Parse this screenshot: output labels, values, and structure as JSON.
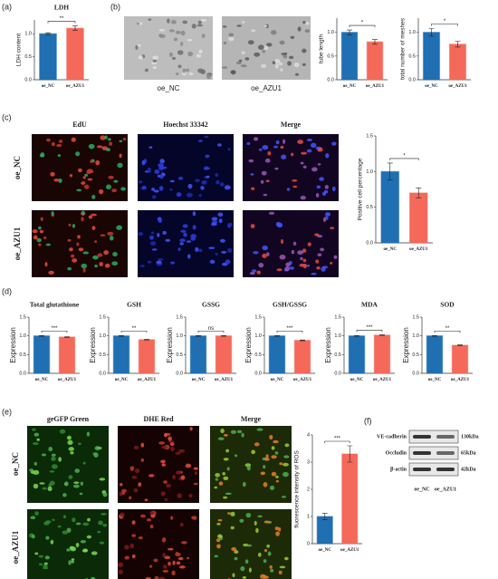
{
  "panels": [
    "(a)",
    "(b)",
    "(c)",
    "(d)",
    "(e)",
    "(f)"
  ],
  "chart_data": [
    {
      "type": "bar",
      "title": "LDH",
      "ylabel": "LDH content",
      "categories": [
        "oe_NC",
        "oe_AZU1"
      ],
      "values": [
        1.0,
        1.12
      ],
      "errors": [
        0.02,
        0.05
      ],
      "colors": [
        "#1f6fb2",
        "#f4695a"
      ],
      "ylim": [
        0,
        1.3
      ],
      "yticks": [
        {
          "value": 0,
          "label": "0.0"
        },
        {
          "value": 0.5,
          "label": "0.5"
        },
        {
          "value": 1,
          "label": "1.0"
        }
      ],
      "significance": "**"
    },
    {
      "type": "bar",
      "ylabel": "tube length",
      "categories": [
        "oe_NC",
        "oe_AZU1"
      ],
      "values": [
        1.0,
        0.8
      ],
      "errors": [
        0.05,
        0.05
      ],
      "colors": [
        "#1f6fb2",
        "#f4695a"
      ],
      "ylim": [
        0,
        1.3
      ],
      "yticks": [
        {
          "value": 0,
          "label": "0.0"
        },
        {
          "value": 0.5,
          "label": "0.5"
        },
        {
          "value": 1,
          "label": "1.0"
        }
      ],
      "significance": "*"
    },
    {
      "type": "bar",
      "ylabel": "total number of meshes",
      "categories": [
        "oe_NC",
        "oe_AZU1"
      ],
      "values": [
        1.0,
        0.75
      ],
      "errors": [
        0.08,
        0.06
      ],
      "colors": [
        "#1f6fb2",
        "#f4695a"
      ],
      "ylim": [
        0,
        1.3
      ],
      "yticks": [
        {
          "value": 0,
          "label": "0.0"
        },
        {
          "value": 0.5,
          "label": "0.5"
        },
        {
          "value": 1,
          "label": "1.0"
        }
      ],
      "significance": "*"
    },
    {
      "type": "bar",
      "ylabel": "Positive cell percentage",
      "categories": [
        "oe_NC",
        "oe_AZU1"
      ],
      "values": [
        1.0,
        0.7
      ],
      "errors": [
        0.12,
        0.07
      ],
      "colors": [
        "#1f6fb2",
        "#f4695a"
      ],
      "ylim": [
        0,
        1.5
      ],
      "yticks": [
        {
          "value": 0,
          "label": "0.0"
        },
        {
          "value": 0.5,
          "label": "0.5"
        },
        {
          "value": 1,
          "label": "1.0"
        },
        {
          "value": 1.5,
          "label": "1.5"
        }
      ],
      "significance": "*"
    },
    {
      "type": "bar",
      "title": "Total glutathione",
      "ylabel": "Expression",
      "categories": [
        "oe_NC",
        "oe_AZU1"
      ],
      "values": [
        1.0,
        0.97
      ],
      "errors": [
        0.01,
        0.01
      ],
      "colors": [
        "#1f6fb2",
        "#f4695a"
      ],
      "ylim": [
        0,
        1.5
      ],
      "yticks": [
        {
          "value": 0,
          "label": "0.0"
        },
        {
          "value": 0.5,
          "label": "0.5"
        },
        {
          "value": 1,
          "label": "1.0"
        },
        {
          "value": 1.5,
          "label": "1.5"
        }
      ],
      "significance": "***"
    },
    {
      "type": "bar",
      "title": "GSH",
      "ylabel": "Expression",
      "categories": [
        "oe_NC",
        "oe_AZU1"
      ],
      "values": [
        1.0,
        0.9
      ],
      "errors": [
        0.01,
        0.01
      ],
      "colors": [
        "#1f6fb2",
        "#f4695a"
      ],
      "ylim": [
        0,
        1.5
      ],
      "yticks": [
        {
          "value": 0,
          "label": "0.0"
        },
        {
          "value": 0.5,
          "label": "0.5"
        },
        {
          "value": 1,
          "label": "1.0"
        },
        {
          "value": 1.5,
          "label": "1.5"
        }
      ],
      "significance": "**"
    },
    {
      "type": "bar",
      "title": "GSSG",
      "ylabel": "Expression",
      "categories": [
        "oe_NC",
        "oe_AZU1"
      ],
      "values": [
        1.0,
        1.0
      ],
      "errors": [
        0.01,
        0.01
      ],
      "colors": [
        "#1f6fb2",
        "#f4695a"
      ],
      "ylim": [
        0,
        1.5
      ],
      "yticks": [
        {
          "value": 0,
          "label": "0.0"
        },
        {
          "value": 0.5,
          "label": "0.5"
        },
        {
          "value": 1,
          "label": "1.0"
        },
        {
          "value": 1.5,
          "label": "1.5"
        }
      ],
      "significance": "ns"
    },
    {
      "type": "bar",
      "title": "GSH/GSSG",
      "ylabel": "Expression",
      "categories": [
        "oe_NC",
        "oe_AZU1"
      ],
      "values": [
        1.0,
        0.88
      ],
      "errors": [
        0.01,
        0.01
      ],
      "colors": [
        "#1f6fb2",
        "#f4695a"
      ],
      "ylim": [
        0,
        1.5
      ],
      "yticks": [
        {
          "value": 0,
          "label": "0.0"
        },
        {
          "value": 0.5,
          "label": "0.5"
        },
        {
          "value": 1,
          "label": "1.0"
        },
        {
          "value": 1.5,
          "label": "1.5"
        }
      ],
      "significance": "***"
    },
    {
      "type": "bar",
      "title": "MDA",
      "ylabel": "Expression",
      "categories": [
        "oe_NC",
        "oe_AZU1"
      ],
      "values": [
        1.0,
        1.02
      ],
      "errors": [
        0.01,
        0.01
      ],
      "colors": [
        "#1f6fb2",
        "#f4695a"
      ],
      "ylim": [
        0,
        1.5
      ],
      "yticks": [
        {
          "value": 0,
          "label": "0.0"
        },
        {
          "value": 0.5,
          "label": "0.5"
        },
        {
          "value": 1,
          "label": "1.0"
        },
        {
          "value": 1.5,
          "label": "1.5"
        }
      ],
      "significance": "***"
    },
    {
      "type": "bar",
      "title": "SOD",
      "ylabel": "Expression",
      "categories": [
        "oe_NC",
        "oe_AZU1"
      ],
      "values": [
        1.0,
        0.75
      ],
      "errors": [
        0.01,
        0.01
      ],
      "colors": [
        "#1f6fb2",
        "#f4695a"
      ],
      "ylim": [
        0,
        1.5
      ],
      "yticks": [
        {
          "value": 0,
          "label": "0.0"
        },
        {
          "value": 0.5,
          "label": "0.5"
        },
        {
          "value": 1,
          "label": "1.0"
        },
        {
          "value": 1.5,
          "label": "1.5"
        }
      ],
      "significance": "**"
    },
    {
      "type": "bar",
      "ylabel": "fluorescence intensity of ROS",
      "categories": [
        "oe_NC",
        "oe_AZU1"
      ],
      "values": [
        1.0,
        3.3
      ],
      "errors": [
        0.12,
        0.3
      ],
      "colors": [
        "#1f6fb2",
        "#f4695a"
      ],
      "ylim": [
        0,
        4
      ],
      "yticks": [
        0,
        1,
        2,
        3,
        4
      ],
      "significance": "***"
    }
  ],
  "micrographs": {
    "b": {
      "labels": [
        "oe_NC",
        "oe_AZU1"
      ]
    },
    "c": {
      "columns": [
        "EdU",
        "Hoechst 33342",
        "Merge"
      ],
      "rows": [
        "oe_NC",
        "oe_AZU1"
      ]
    },
    "e": {
      "columns": [
        "geGFP Green",
        "DHE Red",
        "Merge"
      ],
      "rows": [
        "oe_NC",
        "oe_AZU1"
      ]
    }
  },
  "blot": {
    "proteins": [
      "VE-cadherin",
      "Occludin",
      "β-actin"
    ],
    "sizes": [
      "130kDa",
      "65kDa",
      "42kDa"
    ],
    "lanes": [
      "oe_NC",
      "oe_AZU1"
    ]
  }
}
